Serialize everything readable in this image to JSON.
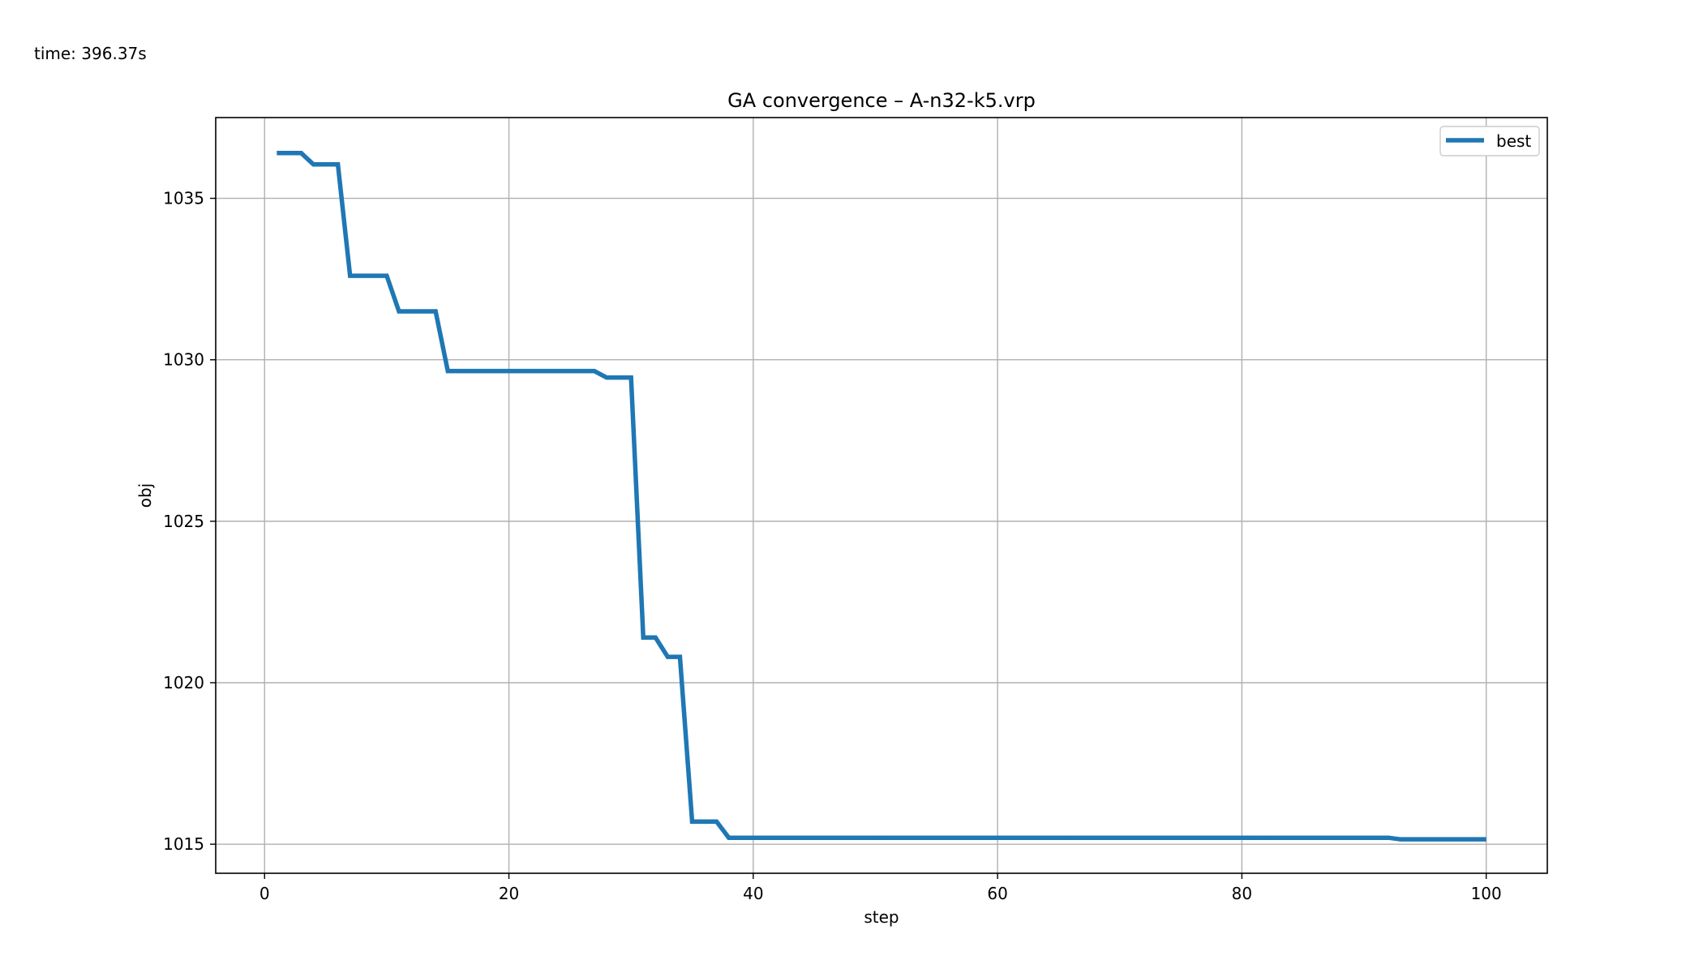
{
  "time_label": "time: 396.37s",
  "chart_data": {
    "type": "line",
    "title": "GA convergence – A-n32-k5.vrp",
    "xlabel": "step",
    "ylabel": "obj",
    "xlim": [
      -4,
      105
    ],
    "ylim": [
      1014.1,
      1037.5
    ],
    "xticks": [
      0,
      20,
      40,
      60,
      80,
      100
    ],
    "yticks": [
      1015,
      1020,
      1025,
      1030,
      1035
    ],
    "grid": true,
    "legend_position": "upper right",
    "series": [
      {
        "name": "best",
        "color": "#1f77b4",
        "x": [
          1,
          2,
          3,
          4,
          5,
          6,
          7,
          8,
          9,
          10,
          11,
          12,
          13,
          14,
          15,
          16,
          17,
          18,
          19,
          20,
          21,
          22,
          23,
          24,
          25,
          26,
          27,
          28,
          29,
          30,
          31,
          32,
          33,
          34,
          35,
          36,
          37,
          38,
          39,
          40,
          41,
          42,
          43,
          44,
          45,
          46,
          47,
          48,
          49,
          50,
          51,
          52,
          53,
          54,
          55,
          56,
          57,
          58,
          59,
          60,
          61,
          62,
          63,
          64,
          65,
          66,
          67,
          68,
          69,
          70,
          71,
          72,
          73,
          74,
          75,
          76,
          77,
          78,
          79,
          80,
          81,
          82,
          83,
          84,
          85,
          86,
          87,
          88,
          89,
          90,
          91,
          92,
          93,
          94,
          95,
          96,
          97,
          98,
          99,
          100
        ],
        "y": [
          1036.4,
          1036.4,
          1036.4,
          1036.05,
          1036.05,
          1036.05,
          1032.6,
          1032.6,
          1032.6,
          1032.6,
          1031.5,
          1031.5,
          1031.5,
          1031.5,
          1029.65,
          1029.65,
          1029.65,
          1029.65,
          1029.65,
          1029.65,
          1029.65,
          1029.65,
          1029.65,
          1029.65,
          1029.65,
          1029.65,
          1029.65,
          1029.45,
          1029.45,
          1029.45,
          1021.4,
          1021.4,
          1020.8,
          1020.8,
          1015.7,
          1015.7,
          1015.7,
          1015.2,
          1015.2,
          1015.2,
          1015.2,
          1015.2,
          1015.2,
          1015.2,
          1015.2,
          1015.2,
          1015.2,
          1015.2,
          1015.2,
          1015.2,
          1015.2,
          1015.2,
          1015.2,
          1015.2,
          1015.2,
          1015.2,
          1015.2,
          1015.2,
          1015.2,
          1015.2,
          1015.2,
          1015.2,
          1015.2,
          1015.2,
          1015.2,
          1015.2,
          1015.2,
          1015.2,
          1015.2,
          1015.2,
          1015.2,
          1015.2,
          1015.2,
          1015.2,
          1015.2,
          1015.2,
          1015.2,
          1015.2,
          1015.2,
          1015.2,
          1015.2,
          1015.2,
          1015.2,
          1015.2,
          1015.2,
          1015.2,
          1015.2,
          1015.2,
          1015.2,
          1015.2,
          1015.2,
          1015.2,
          1015.15,
          1015.15,
          1015.15,
          1015.15,
          1015.15,
          1015.15,
          1015.15,
          1015.15
        ]
      }
    ]
  }
}
